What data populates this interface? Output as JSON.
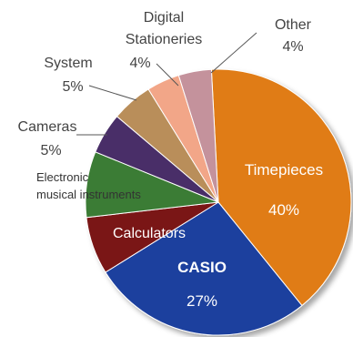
{
  "chart_data": {
    "type": "pie",
    "title": "",
    "center_label": "CASIO",
    "series": [
      {
        "categories": [
          "Timepieces",
          "CASIO",
          "Calculators",
          "Electronic musical instruments",
          "Cameras",
          "System",
          "Digital Stationeries",
          "Other"
        ],
        "values": [
          40,
          27,
          7,
          8,
          5,
          5,
          4,
          4
        ],
        "value_labels": [
          "40%",
          "27%",
          "",
          "",
          "5%",
          "5%",
          "4%",
          "4%"
        ],
        "colors": [
          "#E07B12",
          "#1F3F9E",
          "#7A1417",
          "#3B7C35",
          "#4A2E68",
          "#B98E5A",
          "#F2A688",
          "#C4929C"
        ]
      }
    ]
  },
  "labels": {
    "timepieces": {
      "name": "Timepieces",
      "value": "40%"
    },
    "casio": {
      "name": "CASIO",
      "value": "27%"
    },
    "calculators": {
      "name": "Calculators"
    },
    "electronic": {
      "line1": "Electronic",
      "line2": "musical instruments"
    },
    "cameras": {
      "name": "Cameras",
      "value": "5%"
    },
    "system": {
      "name": "System",
      "value": "5%"
    },
    "digital": {
      "line1": "Digital",
      "line2": "Stationeries",
      "value": "4%"
    },
    "other": {
      "name": "Other",
      "value": "4%"
    }
  }
}
